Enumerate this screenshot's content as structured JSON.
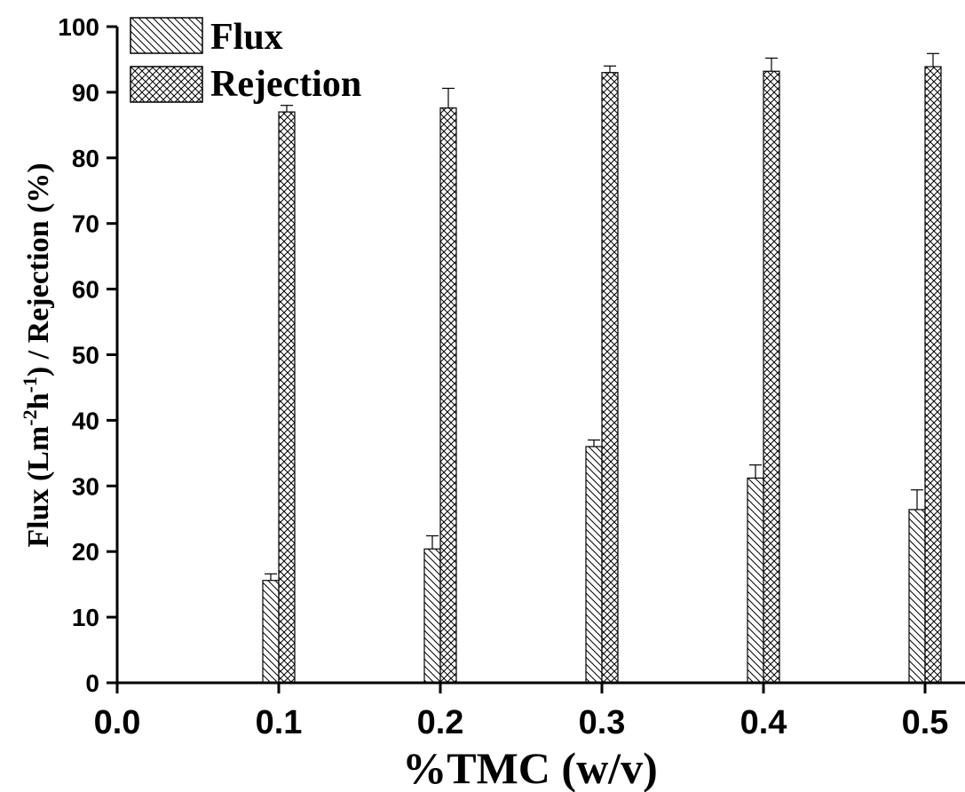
{
  "chart_data": {
    "type": "bar",
    "title": "",
    "xlabel": "%TMC (w/v)",
    "ylabel": {
      "prefix": "Flux (Lm",
      "sup1": "-2",
      "mid": "h",
      "sup2": "-1",
      "suffix": ") / Rejection (%)"
    },
    "xlim": [
      0.0,
      0.5
    ],
    "ylim": [
      0,
      100
    ],
    "xticks": [
      "0.0",
      "0.1",
      "0.2",
      "0.3",
      "0.4",
      "0.5"
    ],
    "yticks": [
      "0",
      "10",
      "20",
      "30",
      "40",
      "50",
      "60",
      "70",
      "80",
      "90",
      "100"
    ],
    "x": [
      0.1,
      0.2,
      0.3,
      0.4,
      0.5
    ],
    "series": [
      {
        "name": "Flux",
        "pattern": "diagonal",
        "values": [
          15.6,
          20.4,
          36.0,
          31.2,
          26.4
        ],
        "errors": [
          1.0,
          2.0,
          1.0,
          2.0,
          3.0
        ]
      },
      {
        "name": "Rejection",
        "pattern": "crosshatch",
        "values": [
          87.0,
          87.6,
          93.0,
          93.2,
          93.9
        ],
        "errors": [
          1.0,
          3.0,
          1.0,
          2.0,
          2.0
        ]
      }
    ],
    "legend_position": "top-left",
    "grid": false
  }
}
